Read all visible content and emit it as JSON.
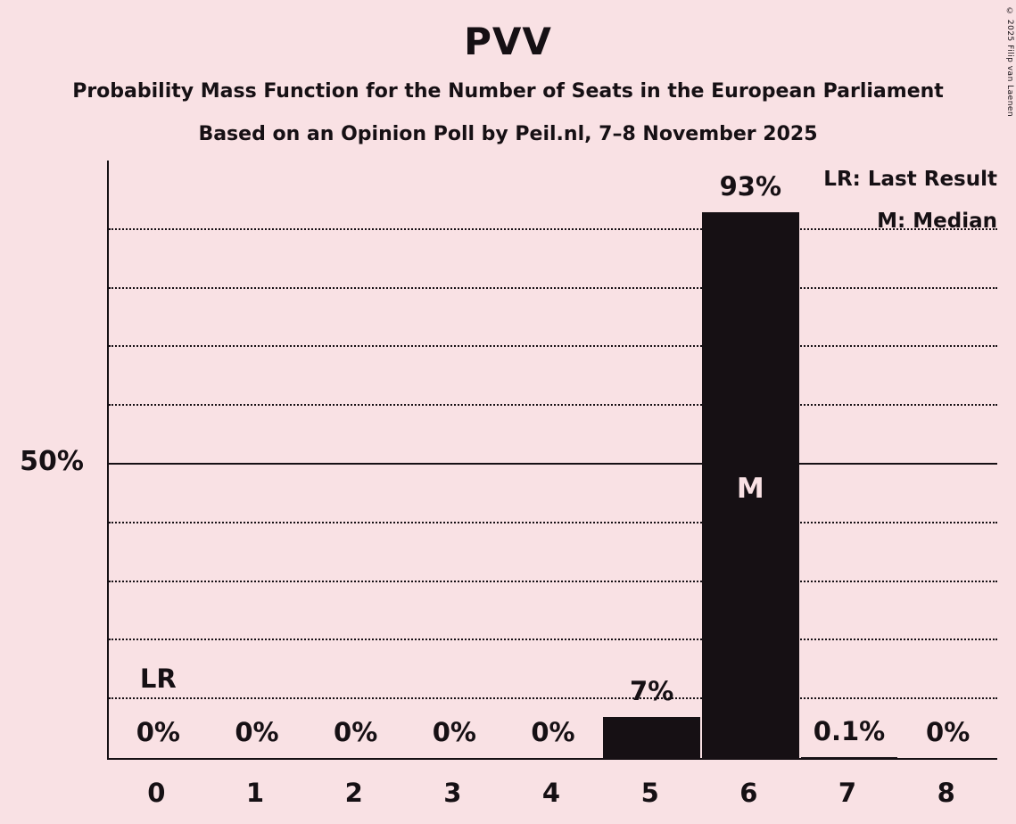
{
  "title": "PVV",
  "subtitle1": "Probability Mass Function for the Number of Seats in the European Parliament",
  "subtitle2": "Based on an Opinion Poll by Peil.nl, 7–8 November 2025",
  "copyright": "© 2025 Filip van Laenen",
  "legend": {
    "lr": "LR: Last Result",
    "m": "M: Median"
  },
  "y_axis_label": "50%",
  "colors": {
    "background": "#f9e1e4",
    "bar": "#161014",
    "text": "#161014",
    "bar_label_inside": "#f9e1e4"
  },
  "chart_data": {
    "type": "bar",
    "categories": [
      "0",
      "1",
      "2",
      "3",
      "4",
      "5",
      "6",
      "7",
      "8"
    ],
    "values": [
      0,
      0,
      0,
      0,
      0,
      7,
      93,
      0.1,
      0
    ],
    "value_labels": [
      "0%",
      "0%",
      "0%",
      "0%",
      "0%",
      "7%",
      "93%",
      "0.1%",
      "0%"
    ],
    "title": "PVV",
    "xlabel": "",
    "ylabel": "",
    "ylim": [
      0,
      100
    ],
    "gridlines_percent": [
      10,
      20,
      30,
      40,
      50,
      60,
      70,
      80,
      90
    ],
    "solid_line_percent": 50,
    "grid": "dotted",
    "legend_position": "top-right",
    "median_seat": "6",
    "median_marker": "M",
    "last_result_seat": "0",
    "last_result_marker": "LR"
  }
}
